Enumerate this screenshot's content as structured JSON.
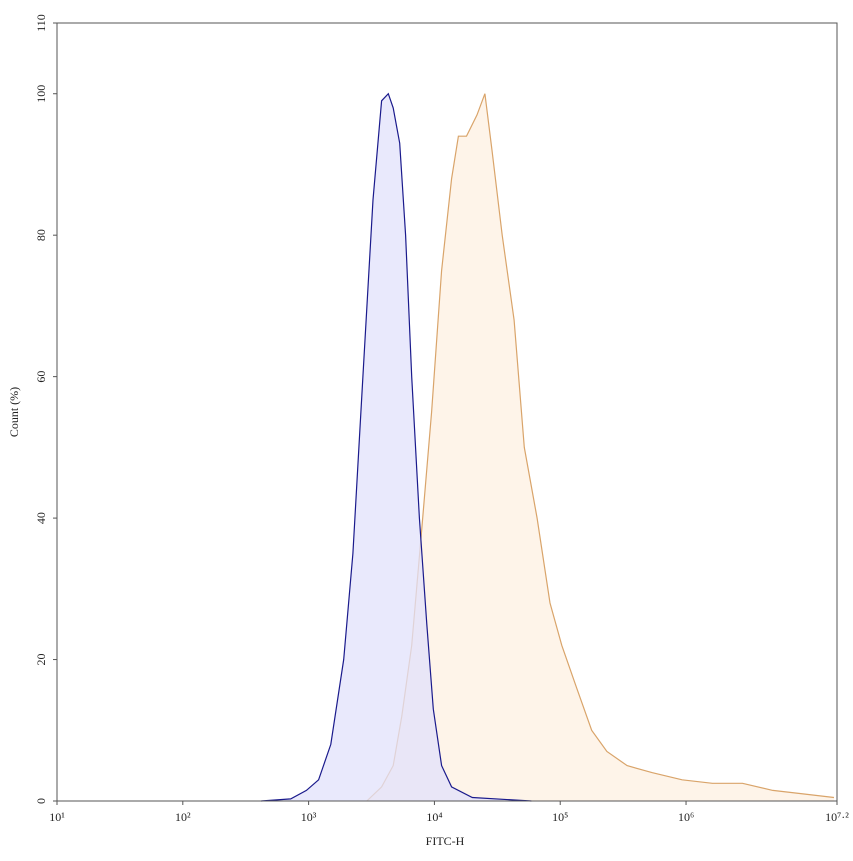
{
  "chart_data": {
    "type": "area",
    "x_label": "FITC-H",
    "y_label": "Count (%)",
    "x_log": true,
    "xlim": [
      10,
      15848931.9
    ],
    "ylim": [
      0,
      110
    ],
    "xticks": [
      {
        "value": 10,
        "label": "10¹"
      },
      {
        "value": 100,
        "label": "10²"
      },
      {
        "value": 1000,
        "label": "10³"
      },
      {
        "value": 10000,
        "label": "10⁴"
      },
      {
        "value": 100000,
        "label": "10⁵"
      },
      {
        "value": 1000000,
        "label": "10⁶"
      },
      {
        "value": 15848931.9,
        "label": "10⁷·²"
      }
    ],
    "yticks": [
      0,
      20,
      40,
      60,
      80,
      100,
      110
    ],
    "series": [
      {
        "color": "#d9a46a",
        "fill": "#fdf0e2",
        "x": [
          2900,
          3800,
          4700,
          5500,
          6600,
          7900,
          9500,
          11400,
          13700,
          15500,
          18000,
          21800,
          25200,
          28700,
          34600,
          43000,
          51800,
          65500,
          83000,
          103000,
          135000,
          178000,
          235000,
          340000,
          540000,
          930000,
          1620000,
          2810000,
          4890000,
          8500000,
          15000000
        ],
        "values": [
          0,
          2,
          5,
          12,
          22,
          38,
          55,
          75,
          88,
          94,
          94,
          97,
          100,
          92,
          80,
          68,
          50,
          40,
          28,
          22,
          16,
          10,
          7,
          5,
          4,
          3,
          2.5,
          2.5,
          1.5,
          1,
          0.5
        ]
      },
      {
        "color": "#1a1a8c",
        "fill": "#e2e2fb",
        "x": [
          420,
          720,
          960,
          1200,
          1500,
          1900,
          2250,
          2700,
          3250,
          3800,
          4300,
          4700,
          5300,
          5900,
          6600,
          7600,
          8700,
          9800,
          11400,
          13700,
          20000,
          59000
        ],
        "values": [
          0,
          0.3,
          1.5,
          3,
          8,
          20,
          35,
          60,
          85,
          99,
          100,
          98,
          93,
          80,
          60,
          40,
          25,
          13,
          5,
          2,
          0.5,
          0
        ]
      }
    ]
  }
}
